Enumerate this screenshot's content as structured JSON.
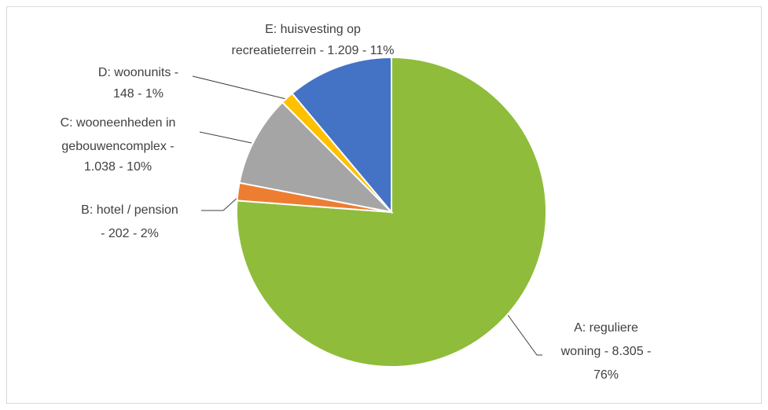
{
  "chart_data": {
    "type": "pie",
    "categories": [
      "A: reguliere woning",
      "B: hotel / pension",
      "C: wooneenheden in gebouwencomplex",
      "D: woonunits",
      "E: huisvesting op recreatieterrein"
    ],
    "values": [
      8305,
      202,
      1038,
      148,
      1209
    ],
    "data_labels": [
      [
        "A: reguliere",
        "woning  - 8.305 -",
        "76%"
      ],
      [
        "B: hotel / pension",
        "- 202 - 2%"
      ],
      [
        "C: wooneenheden in",
        "gebouwencomplex  -",
        "1.038 - 10%"
      ],
      [
        "D: woonunits -",
        "148 - 1%"
      ],
      [
        "E: huisvesting op",
        "recreatieterrein  - 1.209 - 11%"
      ]
    ],
    "colors": [
      "#8fbc3b",
      "#ed7d31",
      "#a5a5a5",
      "#ffc000",
      "#4472c4"
    ]
  }
}
